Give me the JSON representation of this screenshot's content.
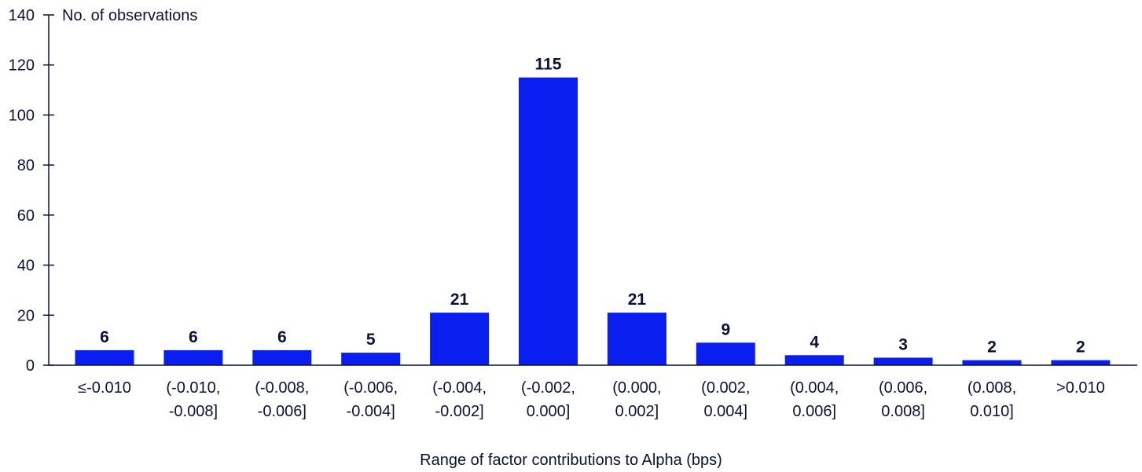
{
  "chart_data": {
    "type": "bar",
    "title": "",
    "ylabel": "No. of observations",
    "xlabel": "Range of factor contributions to Alpha (bps)",
    "ylim": [
      0,
      140
    ],
    "yticks": [
      0,
      20,
      40,
      60,
      80,
      100,
      120,
      140
    ],
    "grid": false,
    "bar_color": "#0a1ef0",
    "categories": [
      [
        "≤-0.010"
      ],
      [
        "(-0.010,",
        "-0.008]"
      ],
      [
        "(-0.008,",
        "-0.006]"
      ],
      [
        "(-0.006,",
        "-0.004]"
      ],
      [
        "(-0.004,",
        "-0.002]"
      ],
      [
        "(-0.002,",
        "0.000]"
      ],
      [
        "(0.000,",
        "0.002]"
      ],
      [
        "(0.002,",
        "0.004]"
      ],
      [
        "(0.004,",
        "0.006]"
      ],
      [
        "(0.006,",
        "0.008]"
      ],
      [
        "(0.008,",
        "0.010]"
      ],
      [
        ">0.010"
      ]
    ],
    "values": [
      6,
      6,
      6,
      5,
      21,
      115,
      21,
      9,
      4,
      3,
      2,
      2
    ]
  }
}
